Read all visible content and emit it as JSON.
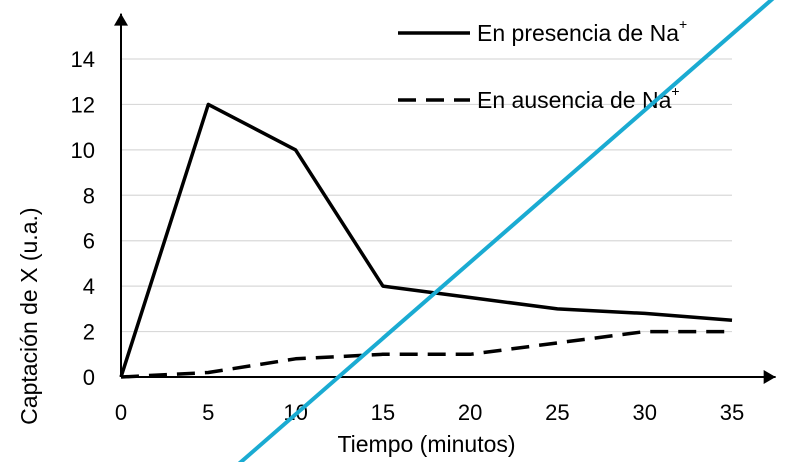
{
  "chart_data": {
    "type": "line",
    "x": [
      0,
      5,
      10,
      15,
      20,
      25,
      30,
      35
    ],
    "xticks": [
      "0",
      "5",
      "10",
      "15",
      "20",
      "25",
      "30",
      "35"
    ],
    "yticks": [
      "0",
      "2",
      "4",
      "6",
      "8",
      "10",
      "12",
      "14"
    ],
    "xlim": [
      0,
      37.5
    ],
    "ylim": [
      0,
      16
    ],
    "xlabel": "Tiempo (minutos)",
    "ylabel": "Captación de X (u.a.)",
    "grid": "horizontal",
    "legend_position": "top-right",
    "series": [
      {
        "name": "En presencia de Na",
        "name_sup": "+",
        "style": "solid",
        "color": "#000000",
        "values": [
          0,
          12,
          10,
          4,
          3.5,
          3,
          2.8,
          2.5
        ]
      },
      {
        "name": "En ausencia de Na",
        "name_sup": "+",
        "style": "dashed",
        "color": "#000000",
        "values": [
          0,
          0.2,
          0.8,
          1,
          1,
          1.5,
          2,
          2
        ]
      }
    ],
    "overlay_line": {
      "color": "#1aabd2"
    }
  }
}
